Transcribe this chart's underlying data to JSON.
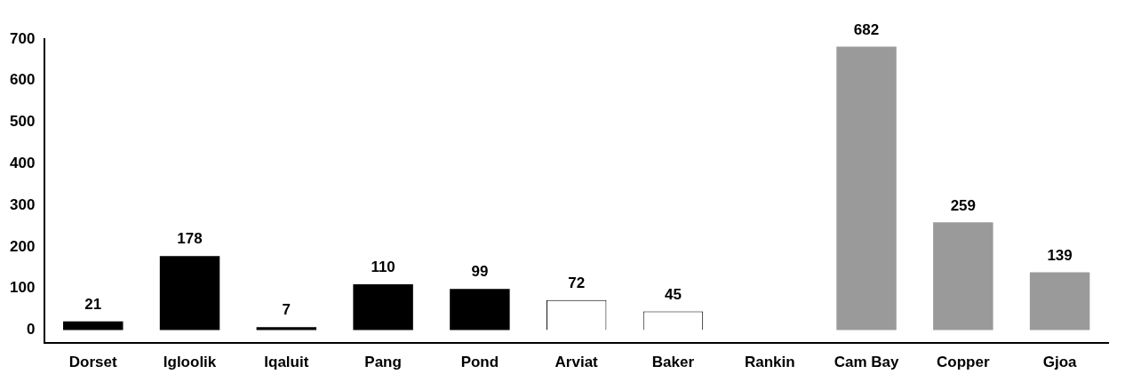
{
  "chart_data": {
    "type": "bar",
    "categories": [
      "Dorset",
      "Igloolik",
      "Iqaluit",
      "Pang",
      "Pond",
      "Arviat",
      "Baker",
      "Rankin",
      "Cam Bay",
      "Copper",
      "Gjoa"
    ],
    "values": [
      21,
      178,
      7,
      110,
      99,
      72,
      45,
      null,
      682,
      259,
      139
    ],
    "colors": [
      "#000000",
      "#000000",
      "#000000",
      "#000000",
      "#000000",
      "#ffffff",
      "#ffffff",
      "#ffffff",
      "#9a9a9a",
      "#9a9a9a",
      "#9a9a9a"
    ],
    "ylim": [
      -30,
      700
    ],
    "yticks": [
      0,
      100,
      200,
      300,
      400,
      500,
      600,
      700
    ],
    "data_labels": true,
    "grid": false,
    "legend": false
  }
}
